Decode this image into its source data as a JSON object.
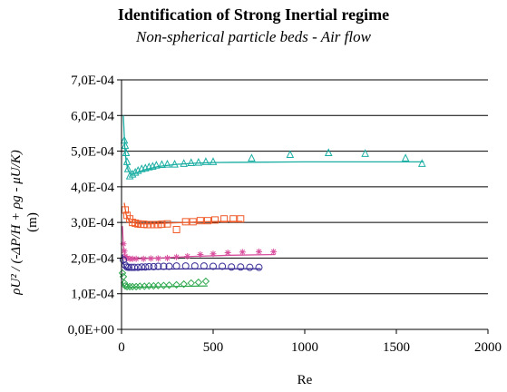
{
  "chart_data": {
    "type": "scatter",
    "title": "Identification of Strong Inertial regime",
    "subtitle": "Non-spherical particle beds - Air flow",
    "xlabel": "Re",
    "ylabel_line1": "ρU² / (-ΔP/H + ρg - μU/K)",
    "ylabel_line2": "(m)",
    "xlim": [
      0,
      2000
    ],
    "ylim": [
      0,
      0.0007
    ],
    "x_ticks": [
      0,
      500,
      1000,
      1500,
      2000
    ],
    "x_tick_labels": [
      "0",
      "500",
      "1000",
      "1500",
      "2000"
    ],
    "y_ticks": [
      0,
      0.0001,
      0.0002,
      0.0003,
      0.0004,
      0.0005,
      0.0006,
      0.0007
    ],
    "y_tick_labels": [
      "0,0E+00",
      "1,0E-04",
      "2,0E-04",
      "3,0E-04",
      "4,0E-04",
      "5,0E-04",
      "6,0E-04",
      "7,0E-04"
    ],
    "grid": "horizontal",
    "series": [
      {
        "marker": "triangle",
        "color": "#1aaea3",
        "x": [
          15,
          20,
          25,
          30,
          35,
          45,
          60,
          75,
          90,
          110,
          130,
          150,
          170,
          190,
          220,
          250,
          290,
          340,
          380,
          420,
          460,
          500,
          710,
          920,
          1130,
          1330,
          1550,
          1640
        ],
        "y": [
          0.00053,
          0.000515,
          0.000495,
          0.00047,
          0.00045,
          0.00043,
          0.000435,
          0.00044,
          0.000445,
          0.00045,
          0.000452,
          0.000455,
          0.000457,
          0.00046,
          0.000462,
          0.000463,
          0.000463,
          0.000465,
          0.000467,
          0.000468,
          0.00047,
          0.00047,
          0.00048,
          0.00049,
          0.000495,
          0.000493,
          0.00048,
          0.000465
        ],
        "fit_x": [
          10,
          18,
          25,
          35,
          50,
          80,
          120,
          200,
          300,
          400,
          500,
          700,
          1000,
          1300,
          1650
        ],
        "fit_y": [
          0.0006,
          0.00051,
          0.00047,
          0.000448,
          0.000435,
          0.000438,
          0.000447,
          0.000457,
          0.000463,
          0.000466,
          0.000468,
          0.000469,
          0.00047,
          0.00047,
          0.00047
        ]
      },
      {
        "marker": "square",
        "color": "#f05a28",
        "x": [
          20,
          30,
          45,
          60,
          75,
          90,
          105,
          120,
          140,
          160,
          180,
          200,
          220,
          250,
          300,
          350,
          390,
          430,
          470,
          510,
          560,
          610,
          650
        ],
        "y": [
          0.000335,
          0.00032,
          0.00031,
          0.0003,
          0.000298,
          0.000296,
          0.000295,
          0.000295,
          0.000294,
          0.000294,
          0.000294,
          0.000294,
          0.000295,
          0.000296,
          0.00028,
          0.000302,
          0.000302,
          0.000305,
          0.000305,
          0.000307,
          0.00031,
          0.00031,
          0.00031
        ],
        "fit_x": [
          15,
          25,
          40,
          60,
          100,
          150,
          250,
          350,
          450,
          550,
          660
        ],
        "fit_y": [
          0.000355,
          0.000322,
          0.000305,
          0.0003,
          0.000296,
          0.000296,
          0.000298,
          0.0003,
          0.000302,
          0.000303,
          0.000303
        ]
      },
      {
        "marker": "star",
        "color": "#d9509f",
        "x": [
          10,
          15,
          20,
          30,
          45,
          60,
          80,
          120,
          160,
          200,
          250,
          300,
          360,
          430,
          500,
          580,
          660,
          750,
          830
        ],
        "y": [
          0.00024,
          0.00022,
          0.000205,
          0.0002,
          0.000198,
          0.000198,
          0.000198,
          0.000198,
          0.000199,
          0.000199,
          0.0002,
          0.000203,
          0.000205,
          0.00021,
          0.000212,
          0.000215,
          0.000217,
          0.000218,
          0.000218
        ],
        "fit_x": [
          5,
          10,
          20,
          40,
          80,
          200,
          400,
          600,
          840
        ],
        "fit_y": [
          0.00029,
          0.000235,
          0.000205,
          0.000199,
          0.000198,
          0.0002,
          0.000205,
          0.000208,
          0.00021
        ]
      },
      {
        "marker": "circle",
        "color": "#3a2f96",
        "x": [
          10,
          20,
          30,
          40,
          55,
          70,
          90,
          110,
          130,
          150,
          175,
          200,
          230,
          260,
          300,
          350,
          400,
          450,
          500,
          550,
          600,
          650,
          700,
          750
        ],
        "y": [
          0.000195,
          0.00018,
          0.000175,
          0.000174,
          0.000174,
          0.000174,
          0.000174,
          0.000175,
          0.000175,
          0.000176,
          0.000176,
          0.000177,
          0.000177,
          0.000177,
          0.000178,
          0.000178,
          0.000178,
          0.000178,
          0.000177,
          0.000177,
          0.000175,
          0.000175,
          0.000174,
          0.000174
        ],
        "fit_x": [
          5,
          10,
          20,
          40,
          80,
          200,
          400,
          600,
          760
        ],
        "fit_y": [
          0.00021,
          0.000185,
          0.000172,
          0.000168,
          0.000168,
          0.000169,
          0.00017,
          0.00017,
          0.00017
        ]
      },
      {
        "marker": "diamond",
        "color": "#2fa84f",
        "x": [
          5,
          10,
          15,
          20,
          30,
          45,
          60,
          80,
          100,
          125,
          150,
          175,
          200,
          230,
          260,
          300,
          340,
          380,
          420,
          460
        ],
        "y": [
          0.000158,
          0.000148,
          0.00013,
          0.000122,
          0.00012,
          0.00012,
          0.00012,
          0.00012,
          0.000121,
          0.000121,
          0.000122,
          0.000122,
          0.000123,
          0.000123,
          0.000124,
          0.000125,
          0.000127,
          0.00013,
          0.000132,
          0.000135
        ],
        "fit_x": [
          5,
          10,
          20,
          40,
          80,
          150,
          250,
          350,
          470
        ],
        "fit_y": [
          0.000135,
          0.000125,
          0.00012,
          0.000118,
          0.000118,
          0.000119,
          0.00012,
          0.000121,
          0.000122
        ]
      }
    ]
  }
}
